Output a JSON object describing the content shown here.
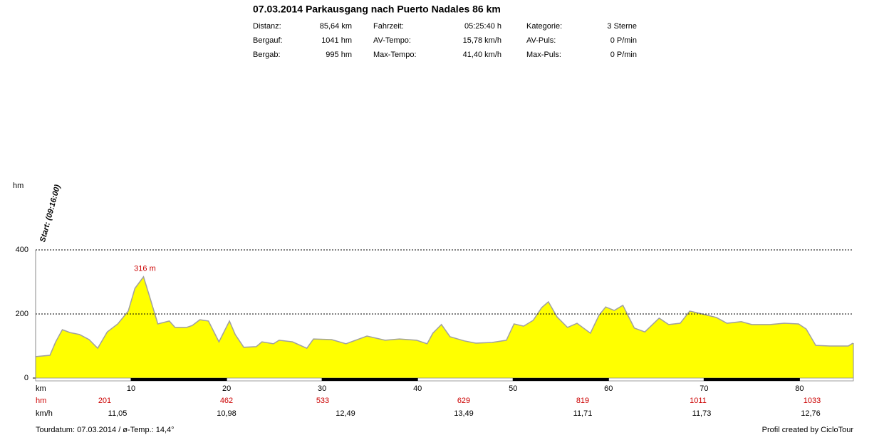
{
  "chart_data": {
    "type": "area",
    "title": "07.03.2014 Parkausgang nach Puerto Nadales 86 km",
    "stats": [
      [
        [
          "Distanz:",
          "85,64 km"
        ],
        [
          "Fahrzeit:",
          "05:25:40 h"
        ],
        [
          "Kategorie:",
          "3 Sterne"
        ]
      ],
      [
        [
          "Bergauf:",
          "1041 hm"
        ],
        [
          "AV-Tempo:",
          "15,78 km/h"
        ],
        [
          "AV-Puls:",
          "0 P/min"
        ]
      ],
      [
        [
          "Bergab:",
          "995 hm"
        ],
        [
          "Max-Tempo:",
          "41,40 km/h"
        ],
        [
          "Max-Puls:",
          "0 P/min"
        ]
      ]
    ],
    "y_label": "hm",
    "x_label": "km",
    "start_label": "Start: (09:16:00)",
    "peak_label": "316 m",
    "color": "#ffff00",
    "line_color": "#a0a0a0",
    "grid": true,
    "xlim": [
      0,
      85.64
    ],
    "ylim": [
      0,
      400
    ],
    "xticks": [
      10,
      20,
      30,
      40,
      50,
      60,
      70,
      80
    ],
    "yticks": [
      0,
      200,
      400
    ],
    "x": [
      0,
      1.5,
      2.1,
      2.8,
      3.6,
      4.6,
      5.6,
      6.5,
      7.5,
      8.6,
      9.7,
      10.4,
      11.3,
      11.9,
      12.8,
      14.0,
      14.6,
      15.8,
      16.4,
      17.2,
      18.1,
      19.2,
      20.3,
      20.9,
      21.8,
      23.1,
      23.7,
      24.9,
      25.5,
      26.9,
      28.4,
      29.1,
      31.0,
      32.5,
      34.7,
      36.6,
      38.1,
      39.9,
      41.0,
      41.6,
      42.5,
      43.4,
      44.9,
      46.1,
      47.8,
      49.3,
      50.1,
      51.1,
      52.1,
      53.0,
      53.7,
      54.6,
      55.7,
      56.7,
      58.1,
      59.0,
      59.7,
      60.6,
      61.5,
      62.7,
      63.8,
      65.3,
      66.3,
      67.5,
      68.5,
      69.8,
      71.3,
      72.4,
      73.9,
      75.0,
      76.9,
      78.4,
      79.9,
      80.7,
      81.7,
      83.2,
      85.1,
      85.6
    ],
    "values": [
      67,
      71,
      113,
      151,
      142,
      136,
      120,
      93,
      144,
      169,
      209,
      280,
      316,
      258,
      169,
      178,
      158,
      158,
      164,
      182,
      178,
      113,
      178,
      136,
      96,
      98,
      113,
      107,
      118,
      113,
      93,
      122,
      120,
      107,
      131,
      118,
      122,
      118,
      107,
      140,
      167,
      129,
      116,
      109,
      111,
      118,
      169,
      162,
      180,
      220,
      238,
      191,
      158,
      171,
      140,
      196,
      222,
      211,
      227,
      156,
      144,
      187,
      167,
      171,
      209,
      200,
      189,
      171,
      176,
      167,
      167,
      171,
      169,
      153,
      102,
      100,
      100,
      109
    ],
    "row_labels": [
      "hm",
      "km/h"
    ],
    "hm_row": [
      201,
      462,
      533,
      629,
      819,
      1011,
      1033
    ],
    "kmh_row": [
      "11,05",
      "10,98",
      "12,49",
      "13,49",
      "11,71",
      "11,73",
      "12,76"
    ],
    "footer_left": "Tourdatum: 07.03.2014  /  ø-Temp.: 14,4°",
    "footer_right": "Profil created by CicloTour"
  }
}
